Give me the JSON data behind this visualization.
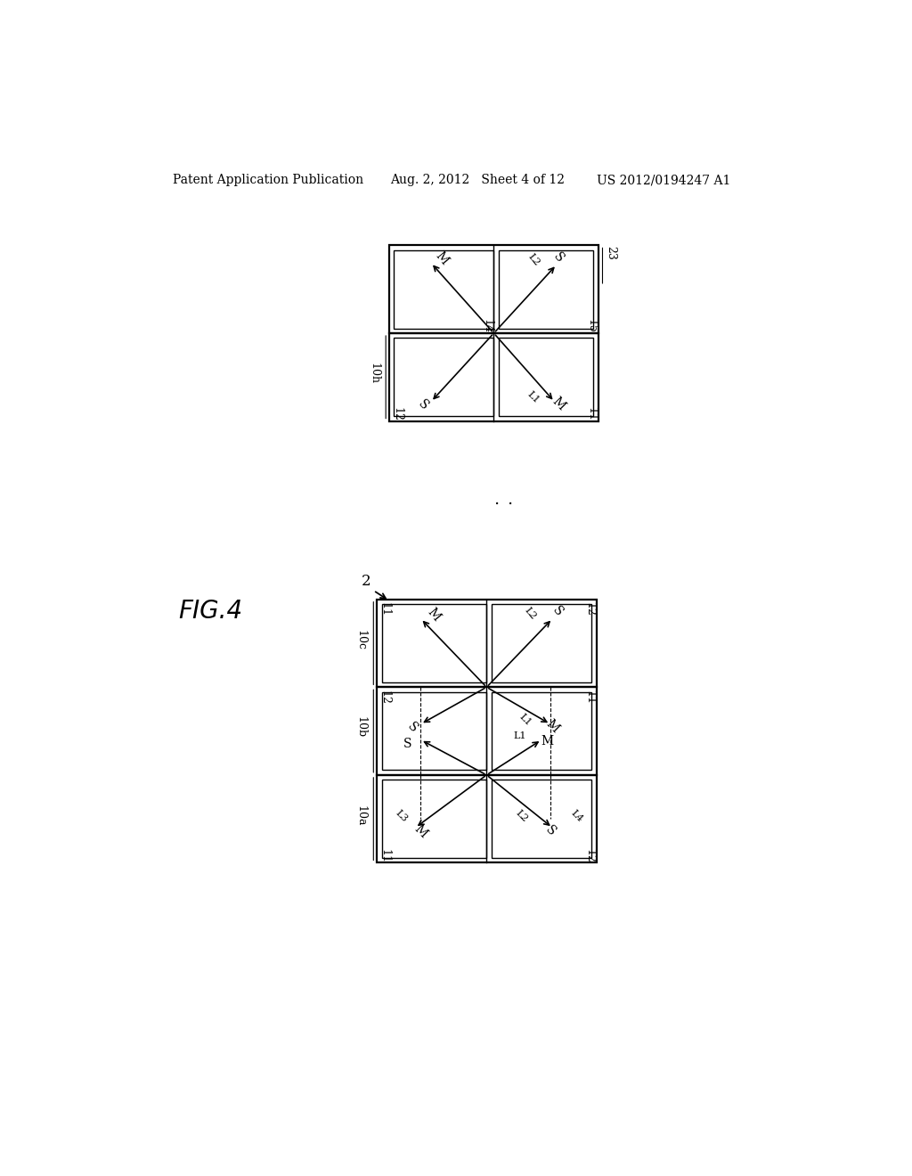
{
  "bg_color": "#ffffff",
  "header_left": "Patent Application Publication",
  "header_mid": "Aug. 2, 2012   Sheet 4 of 12",
  "header_right": "US 2012/0194247 A1",
  "fig_label": "FIG.4"
}
